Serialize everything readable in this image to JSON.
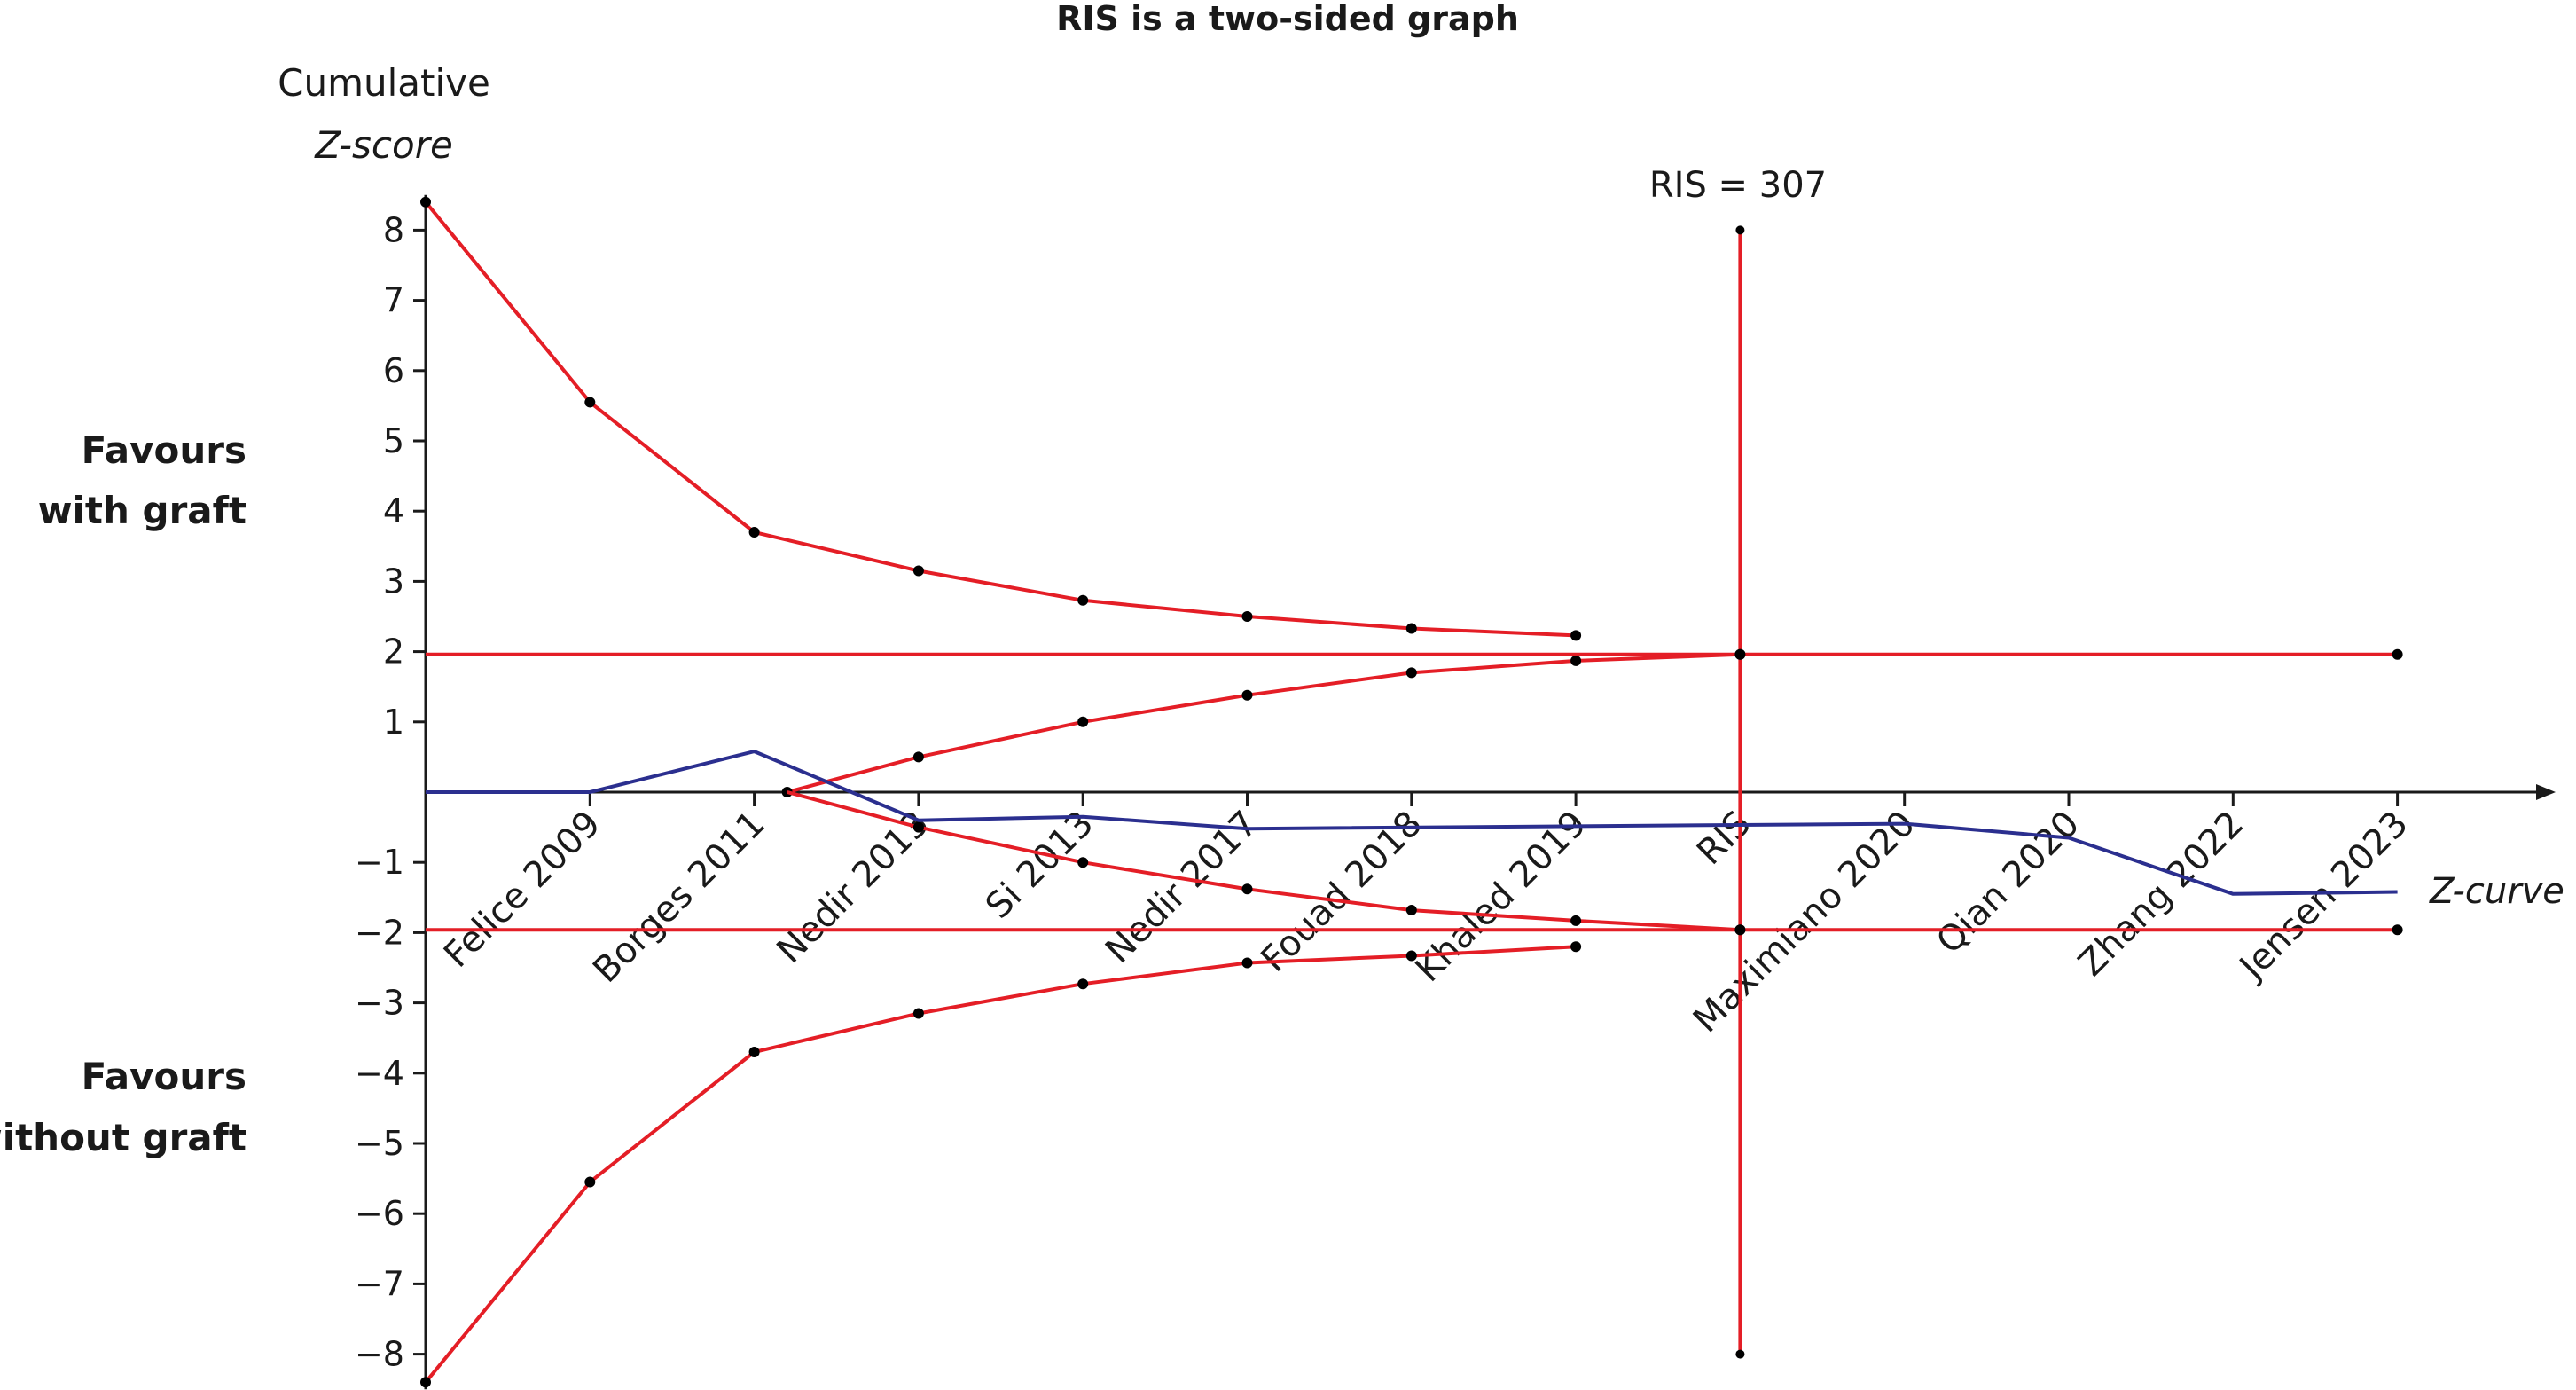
{
  "chart_data": {
    "type": "line",
    "title": "RIS is a two-sided graph",
    "ylabel_line1": "Cumulative",
    "ylabel_line2": "Z-score",
    "xlabel": "Z-curve",
    "side_label_top": [
      "Favours",
      "with graft"
    ],
    "side_label_bottom": [
      "Favours",
      "without graft"
    ],
    "ris_label": "RIS = 307",
    "ylim": [
      -8.5,
      8.5
    ],
    "y_ticks": [
      8,
      7,
      6,
      5,
      4,
      3,
      2,
      1,
      -1,
      -2,
      -3,
      -4,
      -5,
      -6,
      -7,
      -8
    ],
    "y_tick_labels": [
      "8",
      "7",
      "6",
      "5",
      "4",
      "3",
      "2",
      "1",
      "−1",
      "−2",
      "−3",
      "−4",
      "−5",
      "−6",
      "−7",
      "−8"
    ],
    "categories": [
      "Felice 2009",
      "Borges 2011",
      "Nedir 2013",
      "Si 2013",
      "Nedir 2017",
      "Fouad 2018",
      "Khaled 2019",
      "RIS",
      "Maximiano 2020",
      "Qian 2020",
      "Zhang 2022",
      "Jensen 2023"
    ],
    "x_start": 0,
    "x_positions": [
      1,
      2,
      3,
      4,
      5,
      6,
      7,
      8,
      9,
      10,
      11,
      12
    ],
    "ris_x": 8,
    "ris_line_range": [
      -8,
      8
    ],
    "series": [
      {
        "role": "upper_boundary",
        "color": "#e41e26",
        "x": [
          0,
          1,
          2,
          3,
          4,
          5,
          6,
          7
        ],
        "y": [
          8.4,
          5.55,
          3.7,
          3.15,
          2.73,
          2.5,
          2.33,
          2.23
        ]
      },
      {
        "role": "lower_boundary",
        "color": "#e41e26",
        "x": [
          0,
          1,
          2,
          3,
          4,
          5,
          6,
          7
        ],
        "y": [
          -8.4,
          -5.55,
          -3.7,
          -3.15,
          -2.73,
          -2.43,
          -2.33,
          -2.2
        ]
      },
      {
        "role": "upper_futility",
        "color": "#e41e26",
        "x": [
          2.2,
          3,
          4,
          5,
          6,
          7,
          8
        ],
        "y": [
          0,
          0.5,
          1.0,
          1.38,
          1.7,
          1.87,
          1.96
        ]
      },
      {
        "role": "lower_futility",
        "color": "#e41e26",
        "x": [
          2.2,
          3,
          4,
          5,
          6,
          7,
          8
        ],
        "y": [
          0,
          -0.5,
          -1.0,
          -1.38,
          -1.68,
          -1.83,
          -1.96
        ]
      },
      {
        "role": "upper_conventional",
        "color": "#e41e26",
        "x": [
          0,
          8,
          12
        ],
        "y": [
          1.96,
          1.96,
          1.96
        ]
      },
      {
        "role": "lower_conventional",
        "color": "#e41e26",
        "x": [
          0,
          8,
          12
        ],
        "y": [
          -1.96,
          -1.96,
          -1.96
        ]
      },
      {
        "role": "z_curve",
        "color": "#2b2f8f",
        "x": [
          0,
          1,
          2,
          3,
          4,
          5,
          9,
          10,
          11,
          12
        ],
        "y": [
          0,
          0,
          0.58,
          -0.4,
          -0.35,
          -0.52,
          -0.45,
          -0.65,
          -1.45,
          -1.42
        ]
      }
    ],
    "colors": {
      "boundary": "#e41e26",
      "z_curve": "#2b2f8f",
      "axis": "#1a1a1a"
    },
    "grid": false
  }
}
